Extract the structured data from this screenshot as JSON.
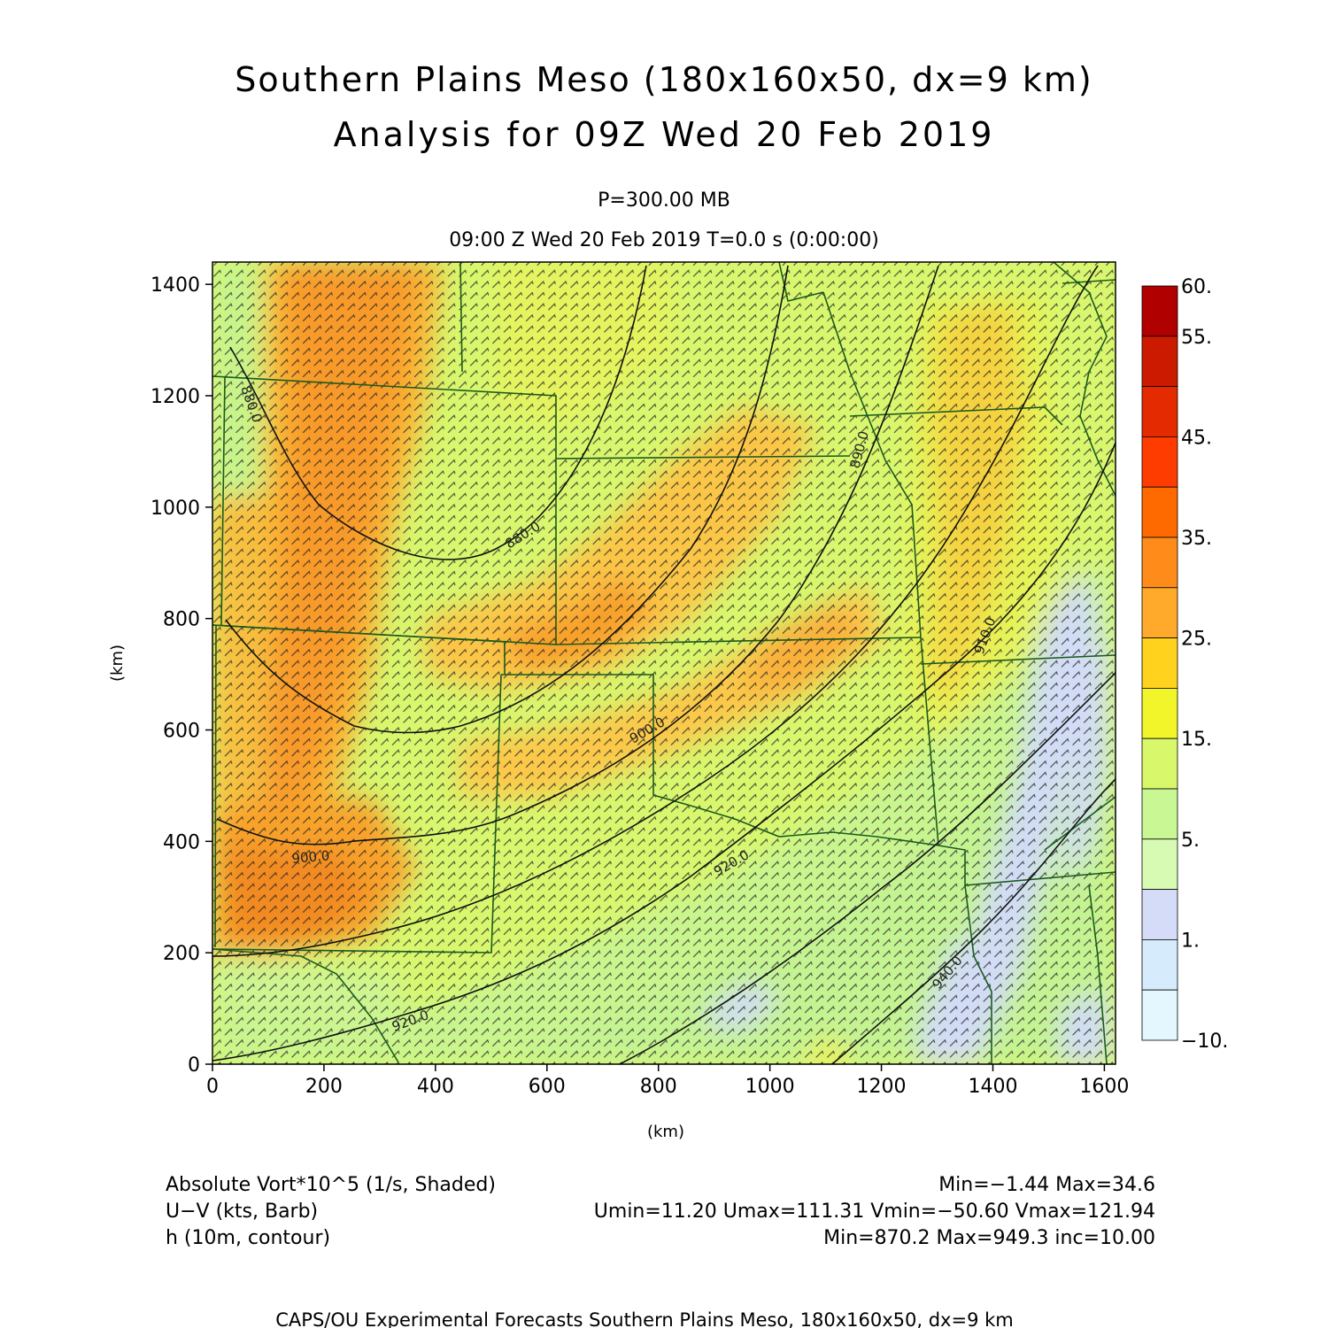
{
  "header": {
    "title_line1": "Southern Plains Meso (180x160x50, dx=9 km)",
    "title_line2": "Analysis for 09Z Wed 20 Feb 2019",
    "level": "P=300.00 MB",
    "time": "09:00 Z Wed 20 Feb 2019    T=0.0 s (0:00:00)"
  },
  "axes": {
    "xlabel": "(km)",
    "ylabel": "(km)",
    "xlim": [
      0,
      1620
    ],
    "ylim": [
      0,
      1440
    ],
    "xticks": [
      "0",
      "200",
      "400",
      "600",
      "800",
      "1000",
      "1200",
      "1400",
      "1600"
    ],
    "yticks": [
      "0",
      "200",
      "400",
      "600",
      "800",
      "1000",
      "1200",
      "1400"
    ]
  },
  "colorbar": {
    "labels": [
      "60.",
      "55.",
      "45.",
      "35.",
      "25.",
      "15.",
      "5.",
      "1.",
      "−10."
    ],
    "colors": [
      "#b00000",
      "#cc1a00",
      "#e32a00",
      "#ff3c00",
      "#ff6a00",
      "#ff8c1a",
      "#ffaa2a",
      "#ffd21e",
      "#f2f52a",
      "#d9f76a",
      "#c8f794",
      "#d8fbb4",
      "#d4dcf8",
      "#d6ecfc",
      "#e4f6fe"
    ]
  },
  "contours": {
    "labels": [
      "880.0",
      "880.0",
      "890.0",
      "900.0",
      "900.0",
      "910.0",
      "920.0",
      "920.0",
      "940.0"
    ]
  },
  "footer": {
    "line1_left": "Absolute Vort*10^5 (1/s, Shaded)",
    "line1_right": "Min=−1.44 Max=34.6",
    "line2_left": "U−V (kts, Barb)",
    "line2_right": "Umin=11.20 Umax=111.31 Vmin=−50.60 Vmax=121.94",
    "line3_left": "h (10m, contour)",
    "line3_right": "Min=870.2 Max=949.3 inc=10.00",
    "credit": "CAPS/OU Experimental Forecasts  Southern Plains Meso, 180x160x50, dx=9 km"
  }
}
